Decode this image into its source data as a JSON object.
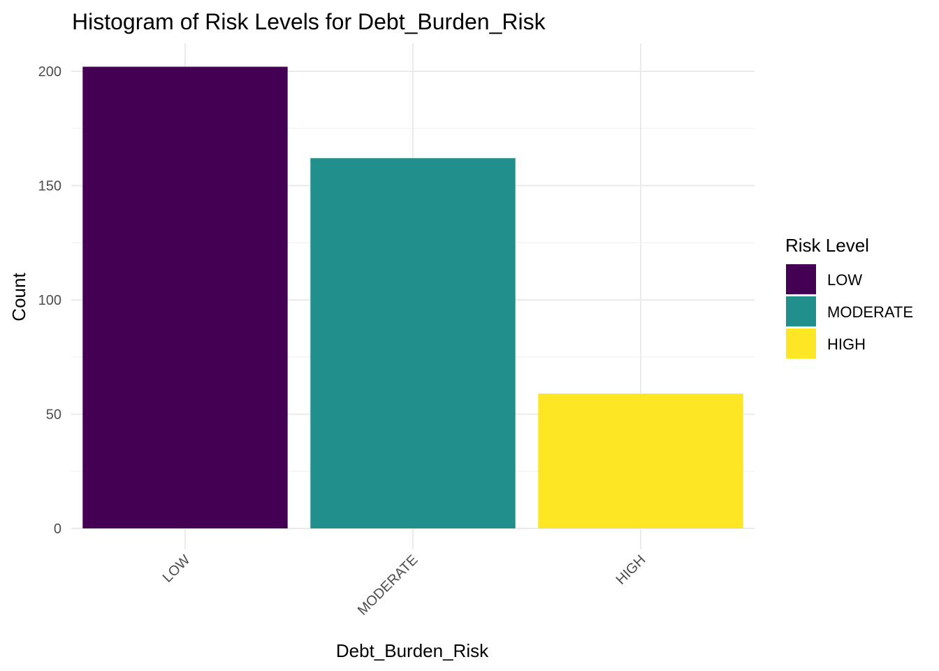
{
  "chart_data": {
    "type": "bar",
    "title": "Histogram of Risk Levels for Debt_Burden_Risk",
    "xlabel": "Debt_Burden_Risk",
    "ylabel": "Count",
    "categories": [
      "LOW",
      "MODERATE",
      "HIGH"
    ],
    "values": [
      202,
      162,
      59
    ],
    "colors": [
      "#440154",
      "#21908C",
      "#FDE725"
    ],
    "ylim": [
      0,
      210
    ],
    "yticks": [
      0,
      50,
      100,
      150,
      200
    ],
    "grid": true,
    "legend": {
      "title": "Risk Level",
      "placement": "right",
      "entries": [
        "LOW",
        "MODERATE",
        "HIGH"
      ]
    }
  }
}
